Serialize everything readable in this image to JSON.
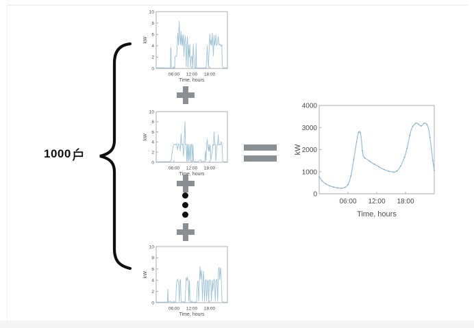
{
  "diagram": {
    "group_label": {
      "full": "1000户",
      "number": "1000",
      "cjk_char": "户"
    },
    "operators": {
      "plus_count": 3,
      "ellipsis_dot_count": 3,
      "has_equals": true
    },
    "colors": {
      "line": "#9cc3d6",
      "marker": "#6f9fc2",
      "operator": "#8a8f94",
      "axis_frame": "#a9adb0",
      "tick_text": "#4a4a4a",
      "brace": "#0f0f0f"
    }
  },
  "chart_data": [
    {
      "type": "line",
      "name": "household-load-1",
      "xlabel": "Time, hours",
      "ylabel": "kW",
      "xlim": [
        0,
        24
      ],
      "ylim": [
        0,
        10
      ],
      "ytick_labels": [
        "0",
        "2",
        "4",
        "6",
        "8",
        "10"
      ],
      "xticks": [
        {
          "hour": 6,
          "label": "06:00"
        },
        {
          "hour": 12,
          "label": "12:00"
        },
        {
          "hour": 18,
          "label": "18:00"
        }
      ],
      "points": [
        [
          0,
          0.1
        ],
        [
          1,
          0.1
        ],
        [
          2,
          0.12
        ],
        [
          3,
          0.1
        ],
        [
          4,
          0.1
        ],
        [
          4.8,
          0.1
        ],
        [
          4.9,
          3.7
        ],
        [
          5,
          3.4
        ],
        [
          5.1,
          0.1
        ],
        [
          6.2,
          0.1
        ],
        [
          6.35,
          2.1
        ],
        [
          6.6,
          2.2
        ],
        [
          6.9,
          2.1
        ],
        [
          7.1,
          4.2
        ],
        [
          7.3,
          6.2
        ],
        [
          7.5,
          4.1
        ],
        [
          7.75,
          8.3
        ],
        [
          7.95,
          5.8
        ],
        [
          8.15,
          4.2
        ],
        [
          8.35,
          6.5
        ],
        [
          8.55,
          4.1
        ],
        [
          8.75,
          5.9
        ],
        [
          8.95,
          4
        ],
        [
          9.15,
          6
        ],
        [
          9.35,
          2.1
        ],
        [
          9.55,
          4.2
        ],
        [
          9.75,
          5.8
        ],
        [
          9.95,
          4.1
        ],
        [
          10.15,
          0.3
        ],
        [
          10.35,
          4
        ],
        [
          10.55,
          5.7
        ],
        [
          10.75,
          0.2
        ],
        [
          10.95,
          4.1
        ],
        [
          11.15,
          2
        ],
        [
          11.35,
          4.3
        ],
        [
          11.55,
          0.2
        ],
        [
          11.85,
          2.1
        ],
        [
          12.05,
          2.2
        ],
        [
          12.25,
          0.2
        ],
        [
          12.5,
          4.3
        ],
        [
          12.7,
          2.2
        ],
        [
          12.9,
          0.1
        ],
        [
          13.3,
          0.1
        ],
        [
          13.45,
          4.4
        ],
        [
          13.6,
          0.1
        ],
        [
          16.8,
          0.1
        ],
        [
          17,
          2.1
        ],
        [
          17.2,
          4
        ],
        [
          17.4,
          2
        ],
        [
          17.6,
          0.2
        ],
        [
          17.9,
          4.1
        ],
        [
          18.1,
          6.1
        ],
        [
          18.3,
          4.2
        ],
        [
          18.5,
          5
        ],
        [
          18.7,
          4
        ],
        [
          18.9,
          6.2
        ],
        [
          19.1,
          4.3
        ],
        [
          19.3,
          2.2
        ],
        [
          19.5,
          5.8
        ],
        [
          19.7,
          4.1
        ],
        [
          19.9,
          4.6
        ],
        [
          20.1,
          5.9
        ],
        [
          20.3,
          4
        ],
        [
          20.6,
          4.4
        ],
        [
          20.9,
          5.6
        ],
        [
          21.2,
          4.1
        ],
        [
          21.5,
          4.3
        ],
        [
          21.8,
          3.9
        ],
        [
          22.1,
          4.2
        ],
        [
          22.3,
          0.3
        ],
        [
          22.6,
          0.1
        ],
        [
          24,
          0.1
        ]
      ]
    },
    {
      "type": "line",
      "name": "household-load-2",
      "xlabel": "Time, hours",
      "ylabel": "kW",
      "xlim": [
        0,
        24
      ],
      "ylim": [
        0,
        10
      ],
      "ytick_labels": [
        "0",
        "2",
        "4",
        "6",
        "8",
        "10"
      ],
      "xticks": [
        {
          "hour": 6,
          "label": "06:00"
        },
        {
          "hour": 12,
          "label": "12:00"
        },
        {
          "hour": 18,
          "label": "18:00"
        }
      ],
      "points": [
        [
          0,
          0.15
        ],
        [
          0.8,
          0.1
        ],
        [
          1.6,
          0.15
        ],
        [
          2.4,
          0.1
        ],
        [
          3.2,
          0.15
        ],
        [
          4,
          0.1
        ],
        [
          5,
          0.2
        ],
        [
          5.4,
          2
        ],
        [
          5.7,
          3.2
        ],
        [
          6.1,
          3.6
        ],
        [
          6.5,
          3.4
        ],
        [
          6.9,
          3.7
        ],
        [
          7.2,
          2.4
        ],
        [
          7.5,
          3.6
        ],
        [
          7.8,
          3.5
        ],
        [
          8.1,
          2.2
        ],
        [
          8.4,
          5.6
        ],
        [
          8.6,
          3.4
        ],
        [
          8.9,
          3.6
        ],
        [
          9.2,
          1.2
        ],
        [
          9.4,
          3.5
        ],
        [
          9.7,
          8
        ],
        [
          9.9,
          3.4
        ],
        [
          10.1,
          3.6
        ],
        [
          10.3,
          0.2
        ],
        [
          10.5,
          3.5
        ],
        [
          10.7,
          0.2
        ],
        [
          10.9,
          3.6
        ],
        [
          11.1,
          0.3
        ],
        [
          11.4,
          3.5
        ],
        [
          11.6,
          0.2
        ],
        [
          11.8,
          3.4
        ],
        [
          12,
          3.6
        ],
        [
          12.2,
          0.2
        ],
        [
          12.4,
          3.5
        ],
        [
          12.6,
          0.2
        ],
        [
          13,
          0.15
        ],
        [
          14,
          0.1
        ],
        [
          15,
          0.5
        ],
        [
          15.2,
          0.15
        ],
        [
          16.4,
          0.2
        ],
        [
          16.6,
          2.2
        ],
        [
          16.8,
          0.3
        ],
        [
          17,
          3.4
        ],
        [
          17.2,
          4.6
        ],
        [
          17.4,
          3.3
        ],
        [
          17.6,
          2.2
        ],
        [
          17.8,
          3.5
        ],
        [
          18,
          2.1
        ],
        [
          18.2,
          3.4
        ],
        [
          18.4,
          0.4
        ],
        [
          18.9,
          2.2
        ],
        [
          19.1,
          3.5
        ],
        [
          19.3,
          3.3
        ],
        [
          19.5,
          6
        ],
        [
          19.7,
          3.4
        ],
        [
          19.9,
          3.6
        ],
        [
          20.1,
          0.3
        ],
        [
          20.5,
          3.5
        ],
        [
          20.7,
          3.4
        ],
        [
          20.9,
          5.5
        ],
        [
          21.1,
          3.4
        ],
        [
          21.4,
          3.6
        ],
        [
          21.7,
          3.4
        ],
        [
          21.9,
          4.1
        ],
        [
          22.2,
          3.5
        ],
        [
          22.4,
          0.2
        ],
        [
          23,
          0.1
        ],
        [
          24,
          0.1
        ]
      ]
    },
    {
      "type": "line",
      "name": "household-load-1000",
      "xlabel": "Time, hours",
      "ylabel": "kW",
      "xlim": [
        0,
        24
      ],
      "ylim": [
        0,
        10
      ],
      "ytick_labels": [
        "0",
        "2",
        "4",
        "6",
        "8",
        "10"
      ],
      "xticks": [
        {
          "hour": 6,
          "label": "06:00"
        },
        {
          "hour": 12,
          "label": "12:00"
        },
        {
          "hour": 18,
          "label": "18:00"
        }
      ],
      "points": [
        [
          0,
          0.1
        ],
        [
          1,
          0.1
        ],
        [
          2,
          0.1
        ],
        [
          3,
          0.1
        ],
        [
          3.8,
          0.1
        ],
        [
          3.9,
          2.4
        ],
        [
          4.1,
          0.1
        ],
        [
          4.7,
          0.3
        ],
        [
          5.1,
          0.1
        ],
        [
          6.6,
          0.1
        ],
        [
          6.8,
          3.2
        ],
        [
          7,
          3.9
        ],
        [
          7.3,
          4.2
        ],
        [
          7.6,
          3
        ],
        [
          7.8,
          0.2
        ],
        [
          8,
          3.8
        ],
        [
          8.2,
          4.1
        ],
        [
          8.4,
          0.2
        ],
        [
          9.7,
          0.1
        ],
        [
          9.9,
          2.1
        ],
        [
          10.1,
          4.4
        ],
        [
          10.3,
          3.9
        ],
        [
          10.5,
          4.6
        ],
        [
          10.8,
          3.8
        ],
        [
          11,
          0.3
        ],
        [
          11.2,
          3.9
        ],
        [
          11.4,
          0.2
        ],
        [
          12,
          0.1
        ],
        [
          13.6,
          0.1
        ],
        [
          13.9,
          3.6
        ],
        [
          14.1,
          3.9
        ],
        [
          14.3,
          0.3
        ],
        [
          14.6,
          4
        ],
        [
          14.8,
          6.5
        ],
        [
          15,
          4.2
        ],
        [
          15.2,
          5.8
        ],
        [
          15.4,
          4
        ],
        [
          15.6,
          0.3
        ],
        [
          15.9,
          5.6
        ],
        [
          16.1,
          4.1
        ],
        [
          16.3,
          0.2
        ],
        [
          16.6,
          3.9
        ],
        [
          16.8,
          4.1
        ],
        [
          17,
          0.3
        ],
        [
          17.3,
          3.8
        ],
        [
          17.5,
          4
        ],
        [
          17.7,
          0.2
        ],
        [
          17.9,
          3.9
        ],
        [
          18.1,
          4.1
        ],
        [
          18.4,
          3.8
        ],
        [
          18.6,
          0.3
        ],
        [
          18.9,
          4
        ],
        [
          19.1,
          2.1
        ],
        [
          19.4,
          4.2
        ],
        [
          19.7,
          3.9
        ],
        [
          19.9,
          0.3
        ],
        [
          20.2,
          4
        ],
        [
          20.5,
          4.2
        ],
        [
          20.7,
          0.2
        ],
        [
          21,
          5.9
        ],
        [
          21.2,
          6.3
        ],
        [
          21.4,
          4.1
        ],
        [
          21.7,
          6.2
        ],
        [
          21.9,
          4.6
        ],
        [
          22.2,
          0.2
        ],
        [
          22.6,
          0.1
        ],
        [
          24,
          0.1
        ]
      ]
    },
    {
      "type": "line",
      "name": "aggregated-load",
      "xlabel": "Time, hours",
      "ylabel": "kW",
      "xlim": [
        0,
        24
      ],
      "ylim": [
        0,
        4000
      ],
      "ytick_labels": [
        "0",
        "1000",
        "2000",
        "3000",
        "4000"
      ],
      "xticks": [
        {
          "hour": 6,
          "label": "06:00"
        },
        {
          "hour": 12,
          "label": "12:00"
        },
        {
          "hour": 18,
          "label": "18:00"
        }
      ],
      "markers": true,
      "points": [
        [
          0,
          770
        ],
        [
          0.3,
          680
        ],
        [
          0.6,
          590
        ],
        [
          1,
          510
        ],
        [
          1.4,
          450
        ],
        [
          1.8,
          400
        ],
        [
          2.2,
          360
        ],
        [
          2.6,
          330
        ],
        [
          3,
          305
        ],
        [
          3.4,
          285
        ],
        [
          3.8,
          268
        ],
        [
          4.2,
          258
        ],
        [
          4.6,
          255
        ],
        [
          5,
          265
        ],
        [
          5.4,
          290
        ],
        [
          5.7,
          330
        ],
        [
          6,
          420
        ],
        [
          6.3,
          560
        ],
        [
          6.6,
          800
        ],
        [
          6.9,
          1150
        ],
        [
          7.2,
          1550
        ],
        [
          7.5,
          1950
        ],
        [
          7.8,
          2350
        ],
        [
          8,
          2600
        ],
        [
          8.2,
          2780
        ],
        [
          8.4,
          2830
        ],
        [
          8.6,
          2760
        ],
        [
          8.8,
          2450
        ],
        [
          9,
          1950
        ],
        [
          9.2,
          1700
        ],
        [
          9.5,
          1620
        ],
        [
          10,
          1560
        ],
        [
          10.5,
          1480
        ],
        [
          11,
          1400
        ],
        [
          11.5,
          1340
        ],
        [
          12,
          1280
        ],
        [
          12.5,
          1220
        ],
        [
          13,
          1150
        ],
        [
          13.5,
          1100
        ],
        [
          14,
          1060
        ],
        [
          14.5,
          1020
        ],
        [
          15,
          1000
        ],
        [
          15.5,
          985
        ],
        [
          15.8,
          980
        ],
        [
          16.2,
          1030
        ],
        [
          16.6,
          1120
        ],
        [
          17,
          1260
        ],
        [
          17.5,
          1500
        ],
        [
          17.8,
          1660
        ],
        [
          18,
          1800
        ],
        [
          18.3,
          2050
        ],
        [
          18.6,
          2350
        ],
        [
          18.9,
          2650
        ],
        [
          19.2,
          2900
        ],
        [
          19.5,
          3050
        ],
        [
          19.8,
          3130
        ],
        [
          20.1,
          3190
        ],
        [
          20.4,
          3210
        ],
        [
          20.7,
          3150
        ],
        [
          21,
          3090
        ],
        [
          21.3,
          3070
        ],
        [
          21.6,
          3130
        ],
        [
          21.9,
          3190
        ],
        [
          22.2,
          3200
        ],
        [
          22.5,
          3130
        ],
        [
          22.8,
          2950
        ],
        [
          23.1,
          2550
        ],
        [
          23.4,
          2050
        ],
        [
          23.7,
          1500
        ],
        [
          23.95,
          1100
        ],
        [
          24,
          1060
        ]
      ]
    }
  ]
}
